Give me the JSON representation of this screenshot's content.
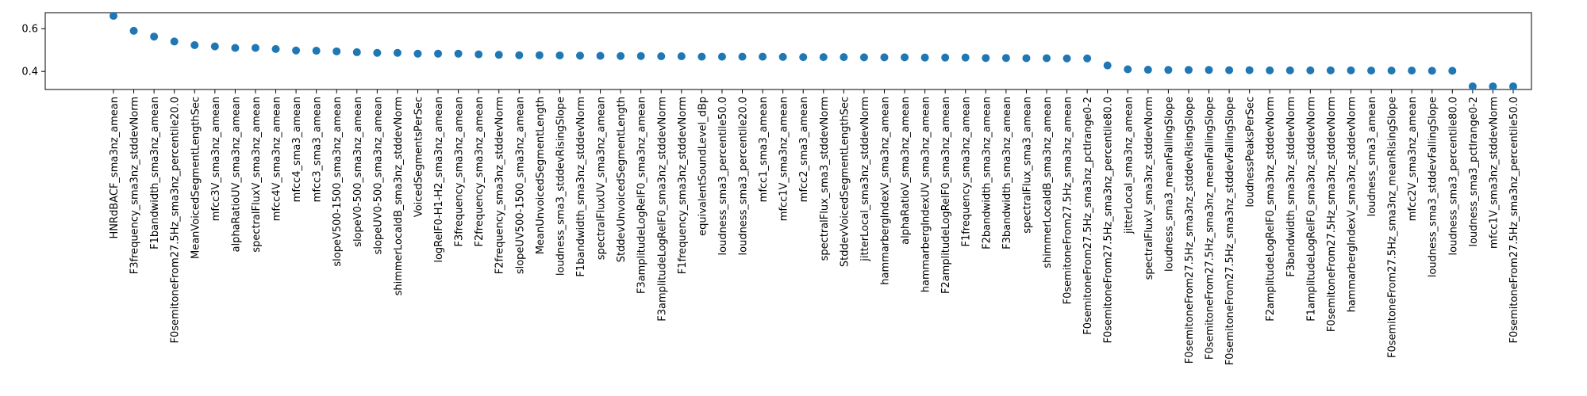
{
  "chart_data": {
    "type": "scatter",
    "title": "",
    "xlabel": "",
    "ylabel": "",
    "ylim": [
      0.3155,
      0.675
    ],
    "yticks": [
      "0.4",
      "0.6"
    ],
    "ytick_values": [
      0.4,
      0.6
    ],
    "grid": false,
    "marker_color": "#1f77b4",
    "categories": [
      "HNRdBACF_sma3nz_amean",
      "F3frequency_sma3nz_stddevNorm",
      "F1bandwidth_sma3nz_amean",
      "F0semitoneFrom27.5Hz_sma3nz_percentile20.0",
      "MeanVoicedSegmentLengthSec",
      "mfcc3V_sma3nz_amean",
      "alphaRatioUV_sma3nz_amean",
      "spectralFluxV_sma3nz_amean",
      "mfcc4V_sma3nz_amean",
      "mfcc4_sma3_amean",
      "mfcc3_sma3_amean",
      "slopeV500-1500_sma3nz_amean",
      "slopeV0-500_sma3nz_amean",
      "slopeUV0-500_sma3nz_amean",
      "shimmerLocaldB_sma3nz_stddevNorm",
      "VoicedSegmentsPerSec",
      "logRelF0-H1-H2_sma3nz_amean",
      "F3frequency_sma3nz_amean",
      "F2frequency_sma3nz_amean",
      "F2frequency_sma3nz_stddevNorm",
      "slopeUV500-1500_sma3nz_amean",
      "MeanUnvoicedSegmentLength",
      "loudness_sma3_stddevRisingSlope",
      "F1bandwidth_sma3nz_stddevNorm",
      "spectralFluxUV_sma3nz_amean",
      "StddevUnvoicedSegmentLength",
      "F3amplitudeLogRelF0_sma3nz_amean",
      "F3amplitudeLogRelF0_sma3nz_stddevNorm",
      "F1frequency_sma3nz_stddevNorm",
      "equivalentSoundLevel_dBp",
      "loudness_sma3_percentile50.0",
      "loudness_sma3_percentile20.0",
      "mfcc1_sma3_amean",
      "mfcc1V_sma3nz_amean",
      "mfcc2_sma3_amean",
      "spectralFlux_sma3_stddevNorm",
      "StddevVoicedSegmentLengthSec",
      "jitterLocal_sma3nz_stddevNorm",
      "hammarbergIndexV_sma3nz_amean",
      "alphaRatioV_sma3nz_amean",
      "hammarbergIndexUV_sma3nz_amean",
      "F2amplitudeLogRelF0_sma3nz_amean",
      "F1frequency_sma3nz_amean",
      "F2bandwidth_sma3nz_amean",
      "F3bandwidth_sma3nz_amean",
      "spectralFlux_sma3_amean",
      "shimmerLocaldB_sma3nz_amean",
      "F0semitoneFrom27.5Hz_sma3nz_amean",
      "F0semitoneFrom27.5Hz_sma3nz_pctlrange0-2",
      "F0semitoneFrom27.5Hz_sma3nz_percentile80.0",
      "jitterLocal_sma3nz_amean",
      "spectralFluxV_sma3nz_stddevNorm",
      "loudness_sma3_meanFallingSlope",
      "F0semitoneFrom27.5Hz_sma3nz_stddevRisingSlope",
      "F0semitoneFrom27.5Hz_sma3nz_meanFallingSlope",
      "F0semitoneFrom27.5Hz_sma3nz_stddevFallingSlope",
      "loudnessPeaksPerSec",
      "F2amplitudeLogRelF0_sma3nz_stddevNorm",
      "F3bandwidth_sma3nz_stddevNorm",
      "F1amplitudeLogRelF0_sma3nz_stddevNorm",
      "F0semitoneFrom27.5Hz_sma3nz_stddevNorm",
      "hammarbergIndexV_sma3nz_stddevNorm",
      "loudness_sma3_amean",
      "F0semitoneFrom27.5Hz_sma3nz_meanRisingSlope",
      "mfcc2V_sma3nz_amean",
      "loudness_sma3_stddevFallingSlope",
      "loudness_sma3_percentile80.0",
      "loudness_sma3_pctlrange0-2",
      "mfcc1V_sma3nz_stddevNorm",
      "F0semitoneFrom27.5Hz_sma3nz_percentile50.0"
    ],
    "values": [
      0.66,
      0.59,
      0.563,
      0.54,
      0.523,
      0.517,
      0.51,
      0.51,
      0.505,
      0.498,
      0.497,
      0.494,
      0.49,
      0.487,
      0.487,
      0.483,
      0.483,
      0.483,
      0.48,
      0.478,
      0.476,
      0.476,
      0.475,
      0.474,
      0.473,
      0.472,
      0.472,
      0.471,
      0.471,
      0.469,
      0.469,
      0.469,
      0.469,
      0.468,
      0.467,
      0.467,
      0.467,
      0.466,
      0.466,
      0.466,
      0.465,
      0.465,
      0.465,
      0.463,
      0.463,
      0.462,
      0.462,
      0.461,
      0.461,
      0.428,
      0.41,
      0.408,
      0.407,
      0.407,
      0.407,
      0.406,
      0.406,
      0.405,
      0.405,
      0.405,
      0.405,
      0.405,
      0.404,
      0.404,
      0.404,
      0.403,
      0.403,
      0.33,
      0.33,
      0.33
    ]
  }
}
